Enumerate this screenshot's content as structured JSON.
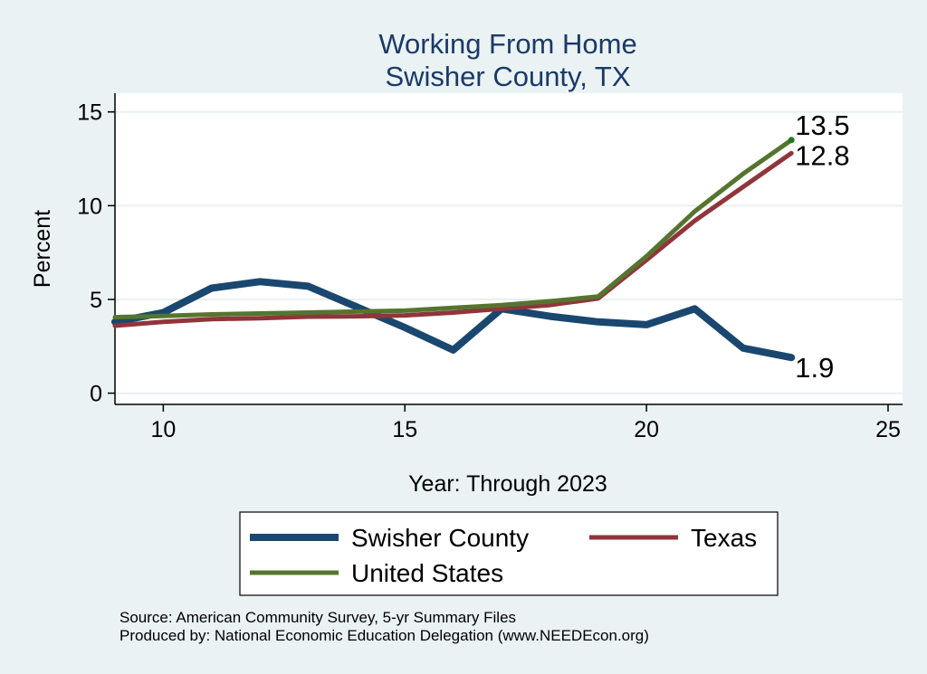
{
  "chart_data": {
    "type": "line",
    "title": "Working From Home",
    "subtitle": "Swisher County, TX",
    "xlabel": "Year: Through 2023",
    "ylabel": "Percent",
    "xlim": [
      9,
      25.3
    ],
    "ylim": [
      -0.6,
      16
    ],
    "xticks": [
      10,
      15,
      20,
      25
    ],
    "yticks": [
      0,
      5,
      10,
      15
    ],
    "grid": true,
    "legend_position": "bottom",
    "series": [
      {
        "name": "Swisher County",
        "color": "#1a476f",
        "x": [
          9,
          10,
          11,
          12,
          13,
          14,
          15,
          16,
          17,
          18,
          19,
          20,
          21,
          22,
          23
        ],
        "values": [
          3.8,
          4.3,
          5.6,
          5.95,
          5.7,
          4.6,
          3.5,
          2.3,
          4.5,
          4.1,
          3.8,
          3.65,
          4.5,
          2.4,
          1.9
        ],
        "end_label": "1.9"
      },
      {
        "name": "Texas",
        "color": "#90353b",
        "x": [
          9,
          10,
          11,
          12,
          13,
          14,
          15,
          16,
          17,
          18,
          19,
          20,
          21,
          22,
          23
        ],
        "values": [
          3.6,
          3.8,
          3.95,
          4.0,
          4.08,
          4.1,
          4.15,
          4.3,
          4.5,
          4.7,
          5.05,
          7.1,
          9.2,
          11.0,
          12.8
        ],
        "end_label": "12.8"
      },
      {
        "name": "United States",
        "color": "#55752f",
        "x": [
          9,
          10,
          11,
          12,
          13,
          14,
          15,
          16,
          17,
          18,
          19,
          20,
          21,
          22,
          23
        ],
        "values": [
          4.05,
          4.12,
          4.2,
          4.25,
          4.3,
          4.35,
          4.4,
          4.55,
          4.7,
          4.9,
          5.15,
          7.3,
          9.7,
          11.7,
          13.5
        ],
        "end_label": "13.5"
      }
    ],
    "notes": [
      "Source: American Community Survey, 5-yr Summary Files",
      "Produced by: National Economic Education Delegation (www.NEEDEcon.org)"
    ]
  }
}
